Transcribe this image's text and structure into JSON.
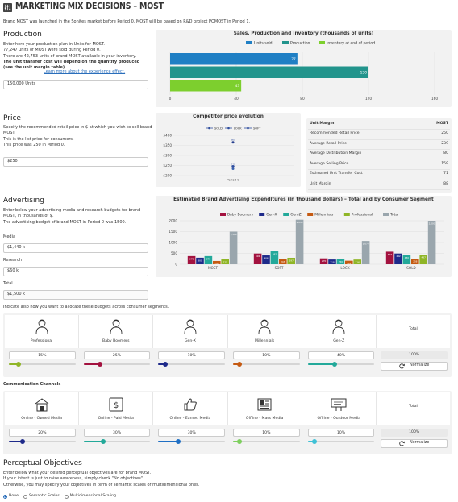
{
  "header": {
    "title": "MARKETING MIX DECISIONS – MOST",
    "intro": "Brand MOST was launched in the Sonites market before Period 0. MOST will be based on R&D project POMOST in Period 1."
  },
  "production": {
    "heading": "Production",
    "lines": [
      "Enter here your production plan in Units for MOST.",
      "77,247 units of MOST were sold during Period 0.",
      "There are 42,753 units of brand MOST available in your inventory."
    ],
    "bold_note": "The unit transfer cost will depend on the quantity produced (see the unit margin table).",
    "link": "Learn more about the experience effect.",
    "input_value": "150,000 Units"
  },
  "sales_chart": {
    "title": "Sales, Production and Inventory (thousands of units)",
    "legend": [
      "Units sold",
      "Production",
      "Inventory at end of period"
    ],
    "colors": [
      "#1f7fc4",
      "#22948c",
      "#7dcf2e"
    ],
    "values": [
      77,
      120,
      43
    ],
    "xticks": [
      "0",
      "40",
      "80",
      "120",
      "160"
    ],
    "xmax": 160
  },
  "price": {
    "heading": "Price",
    "lines": [
      "Specify the recommended retail price in $ at which you wish to sell brand MOST.",
      "This is the list price for consumers.",
      "This price was 250 in Period 0."
    ],
    "input_value": "$250"
  },
  "competitor_chart": {
    "title": "Competitor price evolution",
    "legend": [
      "SOLD",
      "LOCK",
      "SOFT"
    ],
    "yticks": [
      "$400",
      "$350",
      "$300",
      "$250",
      "$200"
    ],
    "ymin": 200,
    "ymax": 400,
    "xlabel": "Period 0",
    "points": [
      {
        "name": "SOFT",
        "value": 365,
        "label": "365"
      },
      {
        "name": "LOCK",
        "value": 246,
        "label": "246"
      },
      {
        "name": "SOLD",
        "value": 234,
        "label": "234"
      }
    ]
  },
  "unit_margin": {
    "headers": [
      "Unit Margin",
      "MOST"
    ],
    "rows": [
      [
        "Recommended Retail Price",
        "250"
      ],
      [
        "Average Retail Price",
        "239"
      ],
      [
        "Average Distribution Margin",
        "80"
      ],
      [
        "Average Selling Price",
        "159"
      ],
      [
        "Estimated Unit Transfer Cost",
        "71"
      ],
      [
        "Unit Margin",
        "88"
      ]
    ]
  },
  "advertising": {
    "heading": "Advertising",
    "lines": [
      "Enter below your advertising media and research budgets for brand MOST, in thousands of $.",
      "The advertising budget of brand MOST in Period 0 was 1500."
    ],
    "media_label": "Media",
    "media_value": "$1,440 k",
    "research_label": "Research",
    "research_value": "$60 k",
    "total_label": "Total",
    "total_value": "$1,500 k"
  },
  "adv_chart": {
    "title": "Estimated Brand Advertising Expenditures (in thousand dollars) – Total and by Consumer Segment",
    "legend": [
      "Baby Boomers",
      "Gen-X",
      "Gen-Z",
      "Millennials",
      "Professional",
      "Total"
    ],
    "colors": [
      "#a3123f",
      "#1e2a8a",
      "#23a99a",
      "#c55a12",
      "#8fb526",
      "#9aa6ad"
    ],
    "categories": [
      "MOST",
      "SOFT",
      "LOCK",
      "SOLD"
    ],
    "yticks": [
      "0",
      "500",
      "1000",
      "1500",
      "2000"
    ],
    "ymax": 2000,
    "series": [
      [
        375,
        492,
        270,
        577
      ],
      [
        300,
        406,
        218,
        492
      ],
      [
        375,
        592,
        250,
        430
      ],
      [
        150,
        243,
        161,
        258
      ],
      [
        225,
        297,
        216,
        437
      ],
      [
        1500,
        2049,
        1070,
        2000
      ]
    ]
  },
  "segments": {
    "intro": "Indicate also how you want to allocate these budgets across consumer segments.",
    "items": [
      {
        "label": "Professional",
        "value": "15%",
        "pct": 15,
        "color": "#8fb526"
      },
      {
        "label": "Baby Boomers",
        "value": "25%",
        "pct": 25,
        "color": "#a3123f"
      },
      {
        "label": "Gen-X",
        "value": "10%",
        "pct": 10,
        "color": "#1e2a8a"
      },
      {
        "label": "Millennials",
        "value": "10%",
        "pct": 10,
        "color": "#c55a12"
      },
      {
        "label": "Gen-Z",
        "value": "40%",
        "pct": 40,
        "color": "#23a99a"
      }
    ],
    "total_label": "Total",
    "total_value": "100%",
    "normalize": "Normalize"
  },
  "channels": {
    "heading": "Communication Channels",
    "items": [
      {
        "label": "Online - Owned Media",
        "value": "20%",
        "pct": 20,
        "color": "#1e2a8a"
      },
      {
        "label": "Online - Paid Media",
        "value": "30%",
        "pct": 30,
        "color": "#23a99a"
      },
      {
        "label": "Online - Earned Media",
        "value": "30%",
        "pct": 30,
        "color": "#1f6fc4"
      },
      {
        "label": "Offline - Mass Media",
        "value": "10%",
        "pct": 10,
        "color": "#7dcf5e"
      },
      {
        "label": "Offline - Outdoor Media",
        "value": "10%",
        "pct": 10,
        "color": "#3fc1d6"
      }
    ],
    "total_label": "Total",
    "total_value": "100%",
    "normalize": "Normalize"
  },
  "perceptual": {
    "heading": "Perceptual Objectives",
    "lines": [
      "Enter below what your desired perceptual objectives are for brand MOST.",
      "If your intent is just to raise awareness, simply check \"No objectives\".",
      "Otherwise, you may specify your objectives in term of semantic scales or multidimensional ones."
    ],
    "options": [
      "None",
      "Semantic Scales",
      "Multidimensional Scaling"
    ]
  }
}
